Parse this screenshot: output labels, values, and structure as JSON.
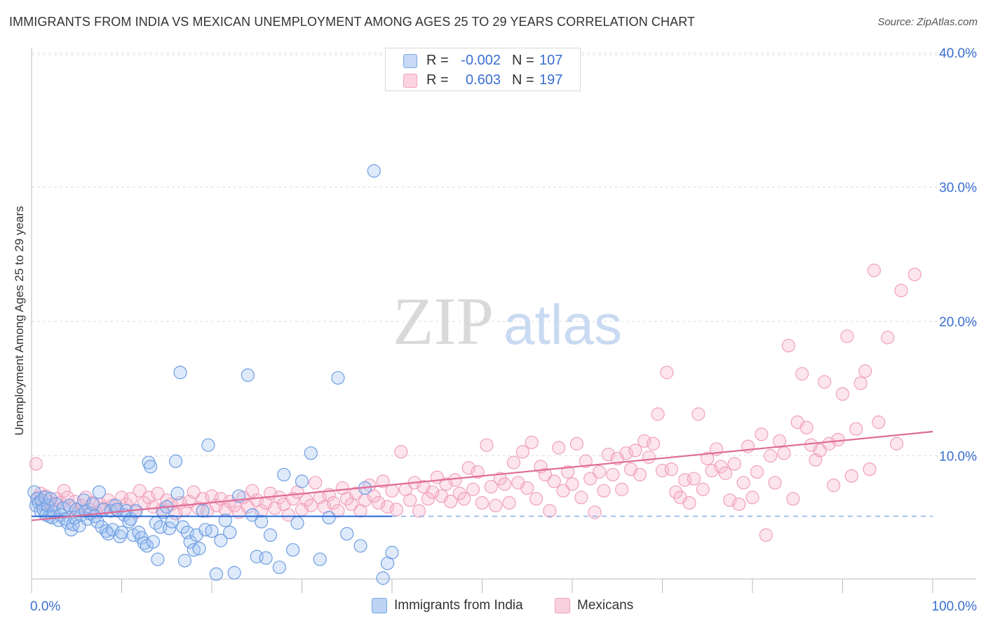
{
  "title": "IMMIGRANTS FROM INDIA VS MEXICAN UNEMPLOYMENT AMONG AGES 25 TO 29 YEARS CORRELATION CHART",
  "source": "Source: ZipAtlas.com",
  "watermark": {
    "zip": "ZIP",
    "atlas": "atlas"
  },
  "legend": {
    "rows": [
      {
        "r_label": "R =",
        "r_value": "-0.002",
        "n_label": "N =",
        "n_value": "107",
        "color": "#7aa7e6"
      },
      {
        "r_label": "R =",
        "r_value": "0.603",
        "n_label": "N =",
        "n_value": "197",
        "color": "#f0a0bc"
      }
    ]
  },
  "bottom_legend": [
    {
      "label": "Immigrants from India",
      "color": "#a9c6f0"
    },
    {
      "label": "Mexicans",
      "color": "#f7c0d2"
    }
  ],
  "colors": {
    "india": "#5a8fe0",
    "mexicans": "#e87fa3",
    "india_line": "#2f6fd6",
    "mex_line": "#e06b97",
    "axis_text": "#3a6fd0"
  },
  "chart_data": {
    "type": "scatter",
    "ylabel": "Unemployment Among Ages 25 to 29 years",
    "x_tick_labels": [
      "0.0%",
      "100.0%"
    ],
    "y_tick_labels": [
      "10.0%",
      "20.0%",
      "30.0%",
      "40.0%"
    ],
    "y_ticks": [
      10,
      20,
      30,
      40
    ],
    "xlim": [
      0,
      100
    ],
    "ylim": [
      0,
      42
    ],
    "grid": true,
    "series": [
      {
        "name": "Immigrants from India",
        "r": -0.002,
        "n": 107,
        "trend": {
          "x0": 0,
          "y0": 5.5,
          "x1": 40,
          "y1": 5.5,
          "dashed_to": 100
        },
        "points": [
          [
            0.3,
            7.3
          ],
          [
            0.5,
            6.3
          ],
          [
            0.6,
            6.8
          ],
          [
            0.8,
            6.5
          ],
          [
            1.0,
            5.9
          ],
          [
            1.1,
            6.7
          ],
          [
            1.3,
            6.0
          ],
          [
            1.5,
            6.9
          ],
          [
            1.6,
            5.6
          ],
          [
            1.8,
            6.3
          ],
          [
            2.0,
            5.5
          ],
          [
            2.1,
            6.8
          ],
          [
            2.3,
            5.4
          ],
          [
            2.5,
            5.8
          ],
          [
            2.7,
            6.4
          ],
          [
            3.0,
            5.2
          ],
          [
            3.2,
            5.6
          ],
          [
            3.5,
            6.1
          ],
          [
            3.7,
            5.3
          ],
          [
            4.0,
            5.0
          ],
          [
            4.2,
            6.3
          ],
          [
            4.4,
            4.5
          ],
          [
            4.6,
            4.9
          ],
          [
            4.8,
            5.4
          ],
          [
            5.0,
            6.0
          ],
          [
            5.3,
            4.8
          ],
          [
            5.5,
            5.6
          ],
          [
            5.8,
            6.7
          ],
          [
            6.0,
            5.9
          ],
          [
            6.2,
            5.3
          ],
          [
            6.5,
            5.7
          ],
          [
            6.8,
            6.4
          ],
          [
            7.0,
            5.5
          ],
          [
            7.3,
            5.1
          ],
          [
            7.5,
            7.3
          ],
          [
            7.8,
            4.7
          ],
          [
            8.0,
            6.0
          ],
          [
            8.3,
            4.4
          ],
          [
            8.5,
            4.2
          ],
          [
            8.8,
            5.9
          ],
          [
            9.0,
            4.5
          ],
          [
            9.3,
            6.3
          ],
          [
            9.5,
            6.0
          ],
          [
            9.8,
            4.0
          ],
          [
            10.0,
            4.3
          ],
          [
            10.3,
            5.6
          ],
          [
            10.5,
            5.9
          ],
          [
            10.8,
            5.1
          ],
          [
            11.0,
            5.3
          ],
          [
            11.3,
            4.1
          ],
          [
            11.6,
            5.9
          ],
          [
            11.9,
            4.3
          ],
          [
            12.2,
            3.9
          ],
          [
            12.5,
            3.5
          ],
          [
            12.8,
            3.3
          ],
          [
            13.0,
            9.5
          ],
          [
            13.2,
            9.2
          ],
          [
            13.5,
            3.6
          ],
          [
            13.8,
            5.0
          ],
          [
            14.0,
            2.3
          ],
          [
            14.3,
            4.7
          ],
          [
            14.6,
            5.8
          ],
          [
            15.0,
            6.2
          ],
          [
            15.3,
            4.6
          ],
          [
            15.6,
            5.1
          ],
          [
            16.0,
            9.6
          ],
          [
            16.2,
            7.2
          ],
          [
            16.5,
            16.2
          ],
          [
            16.8,
            4.7
          ],
          [
            17.0,
            2.2
          ],
          [
            17.3,
            4.3
          ],
          [
            17.6,
            3.6
          ],
          [
            18.0,
            3.0
          ],
          [
            18.3,
            4.1
          ],
          [
            18.6,
            3.1
          ],
          [
            19.0,
            5.9
          ],
          [
            19.3,
            4.5
          ],
          [
            19.6,
            10.8
          ],
          [
            20.0,
            4.4
          ],
          [
            20.5,
            1.2
          ],
          [
            21.0,
            3.7
          ],
          [
            21.5,
            5.2
          ],
          [
            22.0,
            4.3
          ],
          [
            22.5,
            1.3
          ],
          [
            23.0,
            7.0
          ],
          [
            24.0,
            16.0
          ],
          [
            24.5,
            5.6
          ],
          [
            25.0,
            2.5
          ],
          [
            25.5,
            5.1
          ],
          [
            26.0,
            2.4
          ],
          [
            26.5,
            4.1
          ],
          [
            27.5,
            1.7
          ],
          [
            28.0,
            8.6
          ],
          [
            29.0,
            3.0
          ],
          [
            29.5,
            5.0
          ],
          [
            30.0,
            8.1
          ],
          [
            31.0,
            10.2
          ],
          [
            32.0,
            2.3
          ],
          [
            33.0,
            5.4
          ],
          [
            34.0,
            15.8
          ],
          [
            35.0,
            4.2
          ],
          [
            36.5,
            3.3
          ],
          [
            37.0,
            7.6
          ],
          [
            38.0,
            31.2
          ],
          [
            39.0,
            0.9
          ],
          [
            39.5,
            2.0
          ],
          [
            40.0,
            2.8
          ]
        ]
      },
      {
        "name": "Mexicans",
        "r": 0.603,
        "n": 197,
        "trend": {
          "x0": 0,
          "y0": 5.2,
          "x1": 100,
          "y1": 11.8
        },
        "points": [
          [
            0.5,
            9.4
          ],
          [
            0.7,
            6.9
          ],
          [
            1.0,
            7.2
          ],
          [
            1.3,
            6.4
          ],
          [
            1.6,
            7.0
          ],
          [
            2.0,
            6.6
          ],
          [
            2.4,
            6.2
          ],
          [
            2.8,
            6.8
          ],
          [
            3.2,
            6.5
          ],
          [
            3.6,
            7.4
          ],
          [
            4.0,
            6.9
          ],
          [
            4.4,
            6.1
          ],
          [
            4.8,
            6.6
          ],
          [
            5.2,
            5.9
          ],
          [
            5.6,
            6.3
          ],
          [
            6.0,
            6.9
          ],
          [
            6.4,
            6.0
          ],
          [
            6.8,
            6.5
          ],
          [
            7.2,
            5.8
          ],
          [
            7.6,
            6.4
          ],
          [
            8.0,
            6.1
          ],
          [
            8.5,
            6.7
          ],
          [
            9.0,
            6.3
          ],
          [
            9.5,
            5.9
          ],
          [
            10.0,
            6.9
          ],
          [
            10.5,
            6.4
          ],
          [
            11.0,
            6.8
          ],
          [
            11.5,
            5.8
          ],
          [
            12.0,
            7.4
          ],
          [
            12.5,
            6.5
          ],
          [
            13.0,
            6.9
          ],
          [
            13.5,
            6.2
          ],
          [
            14.0,
            7.2
          ],
          [
            14.5,
            6.0
          ],
          [
            15.0,
            6.7
          ],
          [
            15.5,
            6.4
          ],
          [
            16.0,
            5.7
          ],
          [
            16.5,
            6.5
          ],
          [
            17.0,
            6.0
          ],
          [
            17.5,
            6.6
          ],
          [
            18.0,
            7.3
          ],
          [
            18.5,
            6.1
          ],
          [
            19.0,
            6.8
          ],
          [
            19.5,
            5.9
          ],
          [
            20.0,
            7.0
          ],
          [
            20.5,
            6.3
          ],
          [
            21.0,
            6.8
          ],
          [
            21.5,
            6.0
          ],
          [
            22.0,
            6.6
          ],
          [
            22.5,
            6.3
          ],
          [
            23.0,
            5.8
          ],
          [
            23.5,
            6.9
          ],
          [
            24.0,
            6.2
          ],
          [
            24.5,
            7.4
          ],
          [
            25.0,
            6.7
          ],
          [
            25.5,
            5.9
          ],
          [
            26.0,
            6.5
          ],
          [
            26.5,
            7.2
          ],
          [
            27.0,
            6.1
          ],
          [
            27.5,
            6.9
          ],
          [
            28.0,
            6.4
          ],
          [
            28.5,
            5.6
          ],
          [
            29.0,
            6.8
          ],
          [
            29.5,
            7.3
          ],
          [
            30.0,
            6.0
          ],
          [
            30.5,
            6.7
          ],
          [
            31.0,
            6.3
          ],
          [
            31.5,
            8.0
          ],
          [
            32.0,
            6.9
          ],
          [
            32.5,
            6.2
          ],
          [
            33.0,
            7.1
          ],
          [
            33.5,
            6.5
          ],
          [
            34.0,
            5.9
          ],
          [
            34.5,
            7.6
          ],
          [
            35.0,
            6.8
          ],
          [
            35.5,
            6.4
          ],
          [
            36.0,
            7.2
          ],
          [
            36.5,
            5.9
          ],
          [
            37.0,
            6.7
          ],
          [
            37.5,
            7.8
          ],
          [
            38.0,
            7.0
          ],
          [
            38.5,
            6.5
          ],
          [
            39.0,
            8.1
          ],
          [
            39.5,
            6.2
          ],
          [
            40.0,
            7.4
          ],
          [
            40.5,
            6.0
          ],
          [
            41.0,
            10.3
          ],
          [
            41.5,
            7.5
          ],
          [
            42.0,
            6.7
          ],
          [
            42.5,
            8.0
          ],
          [
            43.0,
            5.9
          ],
          [
            43.5,
            7.7
          ],
          [
            44.0,
            6.8
          ],
          [
            44.5,
            7.3
          ],
          [
            45.0,
            8.4
          ],
          [
            45.5,
            7.0
          ],
          [
            46.0,
            7.9
          ],
          [
            46.5,
            6.6
          ],
          [
            47.0,
            8.2
          ],
          [
            47.5,
            7.2
          ],
          [
            48.0,
            6.8
          ],
          [
            48.5,
            9.1
          ],
          [
            49.0,
            7.5
          ],
          [
            49.5,
            8.8
          ],
          [
            50.0,
            6.5
          ],
          [
            50.5,
            10.8
          ],
          [
            51.0,
            7.7
          ],
          [
            51.5,
            6.3
          ],
          [
            52.0,
            8.3
          ],
          [
            52.5,
            7.9
          ],
          [
            53.0,
            6.5
          ],
          [
            53.5,
            9.5
          ],
          [
            54.0,
            8.0
          ],
          [
            54.5,
            10.3
          ],
          [
            55.0,
            7.6
          ],
          [
            55.5,
            11.0
          ],
          [
            56.0,
            6.8
          ],
          [
            56.5,
            9.2
          ],
          [
            57.0,
            8.6
          ],
          [
            57.5,
            5.9
          ],
          [
            58.0,
            8.1
          ],
          [
            58.5,
            10.6
          ],
          [
            59.0,
            7.4
          ],
          [
            59.5,
            8.8
          ],
          [
            60.0,
            7.9
          ],
          [
            60.5,
            10.9
          ],
          [
            61.0,
            6.9
          ],
          [
            61.5,
            9.6
          ],
          [
            62.0,
            8.3
          ],
          [
            62.5,
            5.8
          ],
          [
            63.0,
            8.8
          ],
          [
            63.5,
            7.4
          ],
          [
            64.0,
            10.1
          ],
          [
            64.5,
            8.6
          ],
          [
            65.0,
            9.8
          ],
          [
            65.5,
            7.5
          ],
          [
            66.0,
            10.2
          ],
          [
            66.5,
            9.0
          ],
          [
            67.0,
            10.4
          ],
          [
            67.5,
            8.6
          ],
          [
            68.0,
            11.1
          ],
          [
            68.5,
            9.9
          ],
          [
            69.0,
            10.9
          ],
          [
            69.5,
            13.1
          ],
          [
            70.0,
            8.9
          ],
          [
            70.5,
            16.2
          ],
          [
            71.0,
            9.0
          ],
          [
            71.5,
            7.3
          ],
          [
            72.0,
            6.9
          ],
          [
            72.5,
            8.2
          ],
          [
            73.0,
            6.5
          ],
          [
            73.5,
            8.3
          ],
          [
            74.0,
            13.1
          ],
          [
            74.5,
            7.5
          ],
          [
            75.0,
            9.8
          ],
          [
            75.5,
            8.9
          ],
          [
            76.0,
            10.5
          ],
          [
            76.5,
            9.2
          ],
          [
            77.0,
            8.7
          ],
          [
            77.5,
            6.7
          ],
          [
            78.0,
            9.4
          ],
          [
            78.5,
            6.4
          ],
          [
            79.0,
            8.0
          ],
          [
            79.5,
            10.7
          ],
          [
            80.0,
            6.9
          ],
          [
            80.5,
            8.8
          ],
          [
            81.0,
            11.6
          ],
          [
            81.5,
            4.1
          ],
          [
            82.0,
            10.0
          ],
          [
            82.5,
            8.0
          ],
          [
            83.0,
            11.1
          ],
          [
            83.5,
            10.2
          ],
          [
            84.0,
            18.2
          ],
          [
            84.5,
            6.8
          ],
          [
            85.0,
            12.5
          ],
          [
            85.5,
            16.1
          ],
          [
            86.0,
            12.1
          ],
          [
            86.5,
            10.8
          ],
          [
            87.0,
            9.7
          ],
          [
            87.5,
            10.4
          ],
          [
            88.0,
            15.5
          ],
          [
            88.5,
            10.9
          ],
          [
            89.0,
            7.8
          ],
          [
            89.5,
            11.2
          ],
          [
            90.0,
            14.6
          ],
          [
            90.5,
            18.9
          ],
          [
            91.0,
            8.5
          ],
          [
            91.5,
            12.0
          ],
          [
            92.0,
            15.4
          ],
          [
            92.5,
            16.3
          ],
          [
            93.0,
            9.0
          ],
          [
            93.5,
            23.8
          ],
          [
            94.0,
            12.5
          ],
          [
            95.0,
            18.8
          ],
          [
            96.5,
            22.3
          ],
          [
            98.0,
            23.5
          ],
          [
            96.0,
            10.9
          ]
        ]
      }
    ]
  }
}
